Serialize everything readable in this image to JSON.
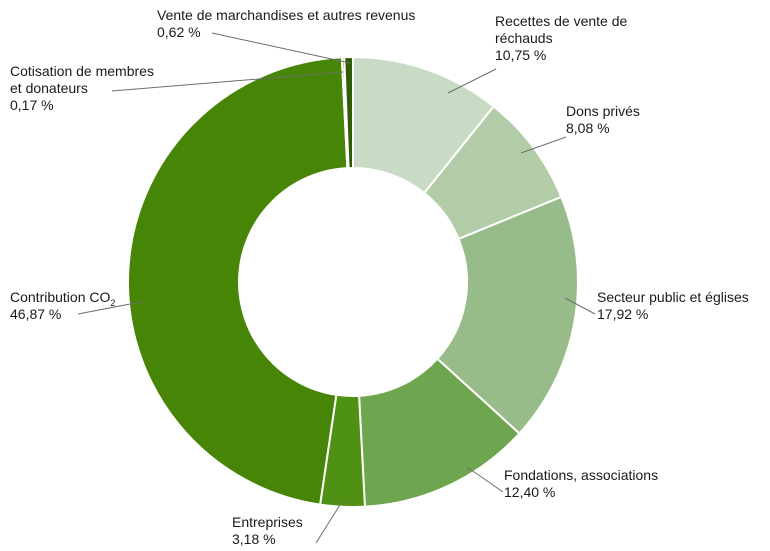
{
  "chart_data": {
    "type": "pie",
    "donut": true,
    "slices": [
      {
        "label_lines": [
          "Recettes de vente de",
          "réchauds"
        ],
        "value": 10.75,
        "value_label": "10,75 %",
        "color": "#c9dbc4"
      },
      {
        "label_lines": [
          "Dons privés"
        ],
        "value": 8.08,
        "value_label": "8,08 %",
        "color": "#b1cca7"
      },
      {
        "label_lines": [
          "Secteur public et églises"
        ],
        "value": 17.92,
        "value_label": "17,92 %",
        "color": "#98bb8a"
      },
      {
        "label_lines": [
          "Fondations, associations"
        ],
        "value": 12.4,
        "value_label": "12,40 %",
        "color": "#6ea64f"
      },
      {
        "label_lines": [
          "Entreprises"
        ],
        "value": 3.18,
        "value_label": "3,18 %",
        "color": "#4f9213"
      },
      {
        "label_lines": [
          "Contribution CO"
        ],
        "label_subscript": "2",
        "value": 46.87,
        "value_label": "46,87 %",
        "color": "#468505"
      },
      {
        "label_lines": [
          "Cotisation de membres",
          "et donateurs"
        ],
        "value": 0.17,
        "value_label": "0,17 %",
        "color": "#3f7a04"
      },
      {
        "label_lines": [
          "Vente de marchandises et autres revenus"
        ],
        "value": 0.62,
        "value_label": "0,62 %",
        "color": "#2f5c05"
      }
    ]
  }
}
